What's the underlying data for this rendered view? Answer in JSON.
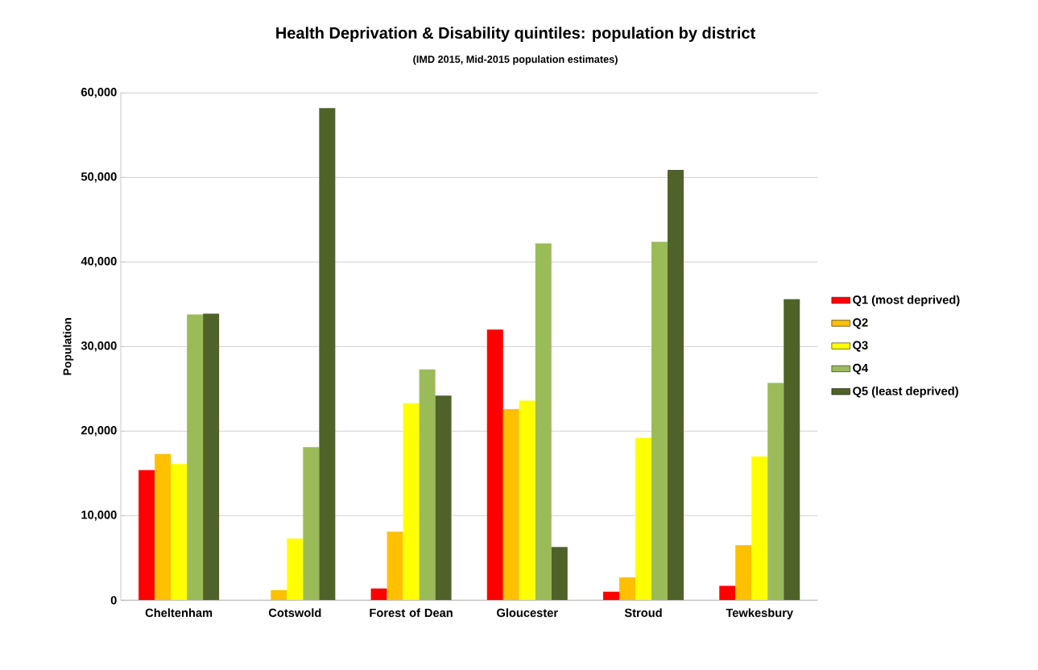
{
  "chart_data": {
    "type": "bar",
    "title": "Health Deprivation & Disability quintiles: population by district",
    "subtitle": "(IMD 2015, Mid-2015 population estimates)",
    "ylabel": "Population",
    "categories": [
      "Cheltenham",
      "Cotswold",
      "Forest of Dean",
      "Gloucester",
      "Stroud",
      "Tewkesbury"
    ],
    "series": [
      {
        "name": "Q1 (most deprived)",
        "color": "#ff0000",
        "values": [
          15400,
          0,
          1400,
          32000,
          1000,
          1700
        ]
      },
      {
        "name": "Q2",
        "color": "#ffc000",
        "values": [
          17300,
          1200,
          8100,
          22600,
          2700,
          6500
        ]
      },
      {
        "name": "Q3",
        "color": "#ffff00",
        "values": [
          16100,
          7300,
          23300,
          23600,
          19200,
          17000
        ]
      },
      {
        "name": "Q4",
        "color": "#9bbb59",
        "values": [
          33800,
          18100,
          27300,
          42200,
          42400,
          25700
        ]
      },
      {
        "name": "Q5 (least deprived)",
        "color": "#4f6228",
        "values": [
          33900,
          58200,
          24200,
          6300,
          50900,
          35600
        ]
      }
    ],
    "ylim": [
      0,
      60000
    ],
    "yticks": [
      0,
      {
        "value": 10000,
        "label": "10,000"
      },
      {
        "value": 20000,
        "label": "20,000"
      },
      {
        "value": 30000,
        "label": "30,000"
      },
      {
        "value": 40000,
        "label": "40,000"
      },
      {
        "value": 50000,
        "label": "50,000"
      },
      {
        "value": 60000,
        "label": "60,000"
      }
    ],
    "grid": "y",
    "legend": "right"
  }
}
